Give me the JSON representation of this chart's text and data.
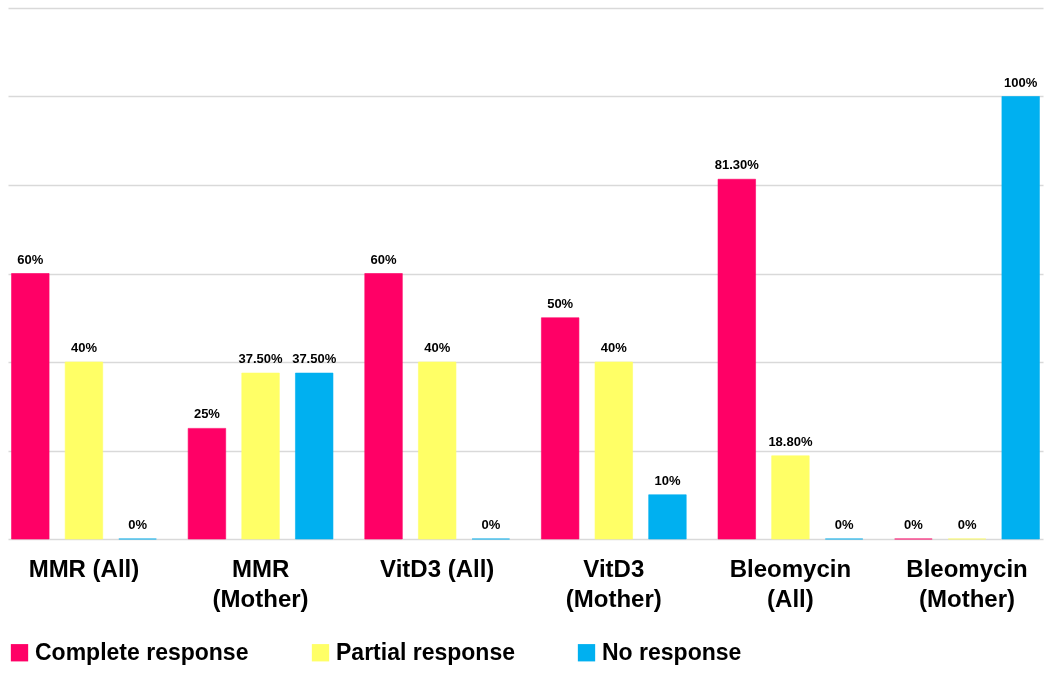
{
  "chart_data": {
    "type": "bar",
    "categories": [
      "MMR (All)",
      "MMR (Mother)",
      "VitD3 (All)",
      "VitD3 (Mother)",
      "Bleomycin (All)",
      "Bleomycin (Mother)"
    ],
    "series": [
      {
        "name": "Complete response",
        "color": "#ff0066",
        "values": [
          60,
          25,
          60,
          50,
          81.3,
          0
        ],
        "value_labels": [
          "60%",
          "25%",
          "60%",
          "50%",
          "81.30%",
          "0%"
        ]
      },
      {
        "name": "Partial response",
        "color": "#ffff66",
        "values": [
          40,
          37.5,
          40,
          40,
          18.8,
          0
        ],
        "value_labels": [
          "40%",
          "37.50%",
          "40%",
          "40%",
          "18.80%",
          "0%"
        ]
      },
      {
        "name": "No response",
        "color": "#00b0f0",
        "values": [
          0,
          37.5,
          0,
          10,
          0,
          100
        ],
        "value_labels": [
          "0%",
          "37.50%",
          "0%",
          "10%",
          "0%",
          "100%"
        ]
      }
    ],
    "ylim": [
      0,
      120
    ],
    "yticks": [
      {
        "value": 0,
        "label": null
      },
      {
        "value": 20,
        "label": null
      },
      {
        "value": 40,
        "label": null
      },
      {
        "value": 60,
        "label": null
      },
      {
        "value": 80,
        "label": null
      },
      {
        "value": 100,
        "label": null
      },
      {
        "value": 120,
        "label": null
      }
    ],
    "grid": "y",
    "legend": "bottom",
    "tick_labels": "x"
  }
}
